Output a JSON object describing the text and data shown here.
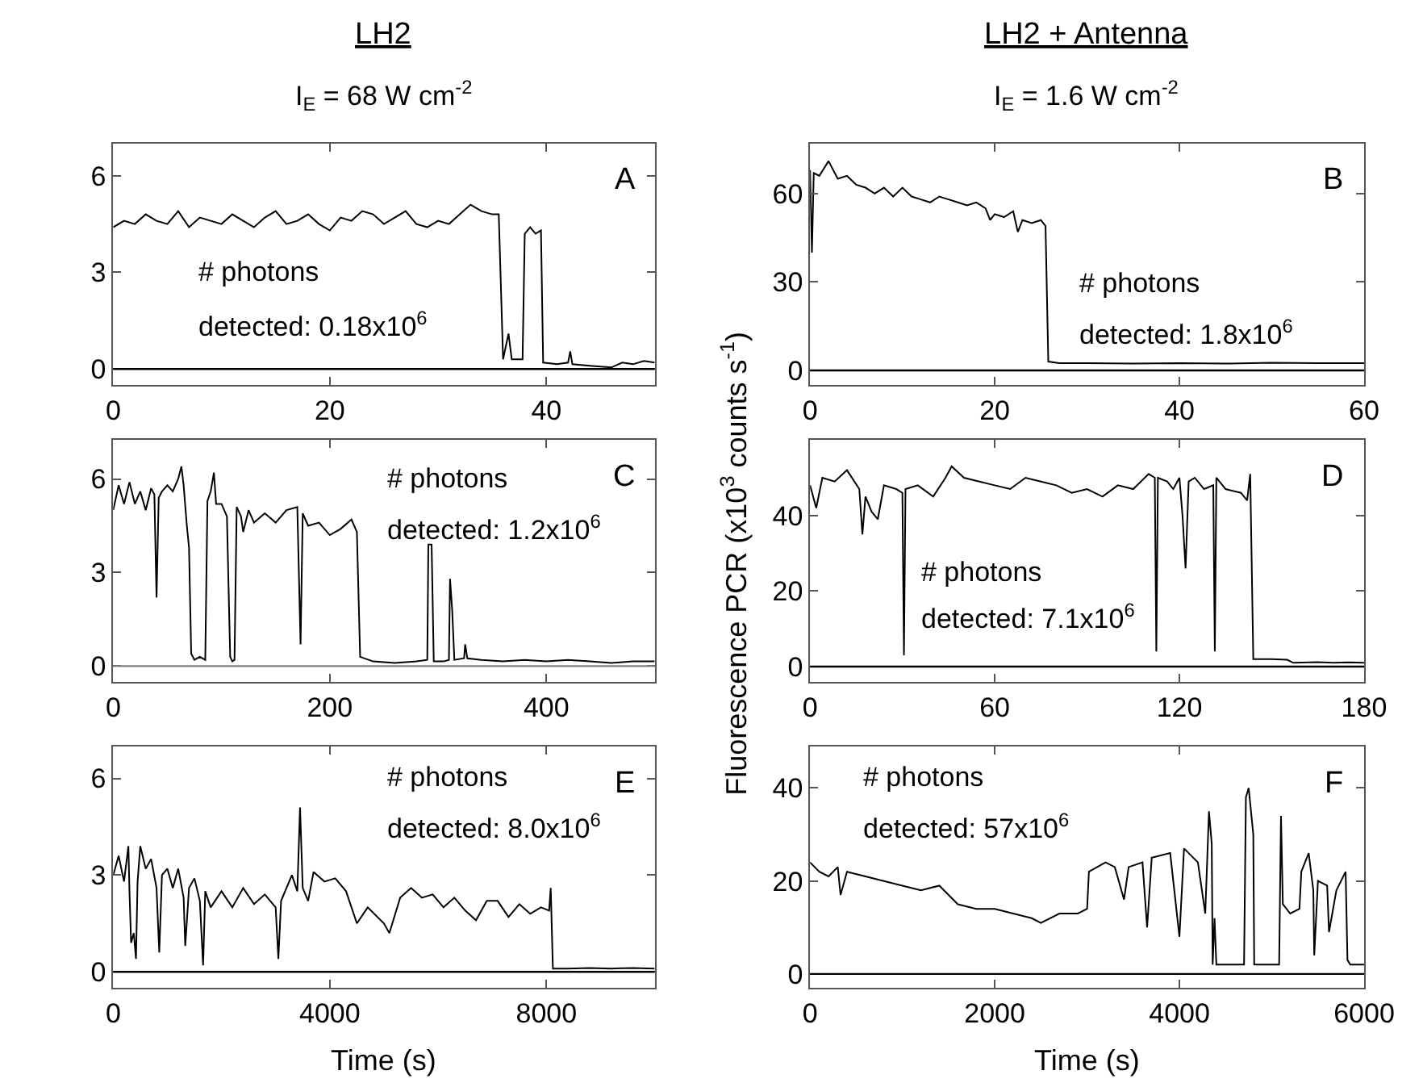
{
  "chart_data": [
    {
      "type": "line",
      "title": "LH2",
      "subtitle": "I$_{E}$ = 68 W cm$^{-2}$",
      "xlim": [
        0,
        50
      ],
      "xticks": [
        0,
        20,
        40
      ],
      "ylim": [
        -0.5,
        7
      ],
      "yticks": [
        0,
        3,
        6
      ],
      "marker": "none",
      "line_style": "solid",
      "ref_lines": [
        {
          "axis": "y",
          "value": 0,
          "color": "#000000"
        }
      ],
      "annotations": [
        "A",
        "# photons",
        "detected: 0.18x10$^{6}$"
      ],
      "series": [
        {
          "color": "#000000",
          "x": [
            0,
            1,
            2,
            3,
            4,
            5,
            6,
            7,
            8,
            9,
            10,
            11,
            12,
            13,
            14,
            15,
            16,
            17,
            18,
            19,
            20,
            21,
            22,
            23,
            24,
            25,
            26,
            27,
            28,
            29,
            30,
            31,
            32,
            33,
            34,
            35,
            35.6,
            36,
            36.5,
            36.8,
            37.8,
            38,
            38.5,
            39,
            39.5,
            39.7,
            41,
            42,
            42.2,
            42.4,
            44,
            46,
            47,
            48,
            49,
            50
          ],
          "values": [
            4.4,
            4.6,
            4.5,
            4.8,
            4.6,
            4.5,
            4.9,
            4.4,
            4.7,
            4.6,
            4.5,
            4.8,
            4.6,
            4.4,
            4.7,
            4.9,
            4.5,
            4.6,
            4.8,
            4.5,
            4.3,
            4.7,
            4.6,
            4.9,
            4.8,
            4.5,
            4.7,
            4.9,
            4.5,
            4.4,
            4.6,
            4.5,
            4.8,
            5.1,
            4.9,
            4.8,
            4.8,
            0.3,
            1.1,
            0.3,
            0.3,
            4.2,
            4.4,
            4.2,
            4.3,
            0.2,
            0.15,
            0.2,
            0.55,
            0.15,
            0.1,
            0.05,
            0.2,
            0.15,
            0.25,
            0.2
          ]
        }
      ]
    },
    {
      "type": "line",
      "title": "LH2 + Antenna",
      "subtitle": "I$_{E}$ = 1.6 W cm$^{-2}$",
      "xlim": [
        0,
        60
      ],
      "xticks": [
        0,
        20,
        40,
        60
      ],
      "ylim": [
        -5,
        77
      ],
      "yticks": [
        0,
        30,
        60
      ],
      "marker": "none",
      "line_style": "solid",
      "ref_lines": [
        {
          "axis": "y",
          "value": 0,
          "color": "#000000"
        }
      ],
      "annotations": [
        "B",
        "# photons",
        "detected: 1.8x10$^{6}$"
      ],
      "series": [
        {
          "color": "#000000",
          "x": [
            0,
            0.2,
            0.4,
            1,
            2,
            3,
            4,
            5,
            6,
            7,
            8,
            9,
            10,
            11,
            12,
            13,
            14,
            15,
            16,
            17,
            18,
            19,
            19.5,
            20,
            21,
            22,
            22.5,
            23,
            24,
            25,
            25.5,
            25.8,
            27,
            30,
            35,
            40,
            45,
            50,
            55,
            60
          ],
          "values": [
            68,
            40,
            67,
            66,
            71,
            65,
            66,
            63,
            62,
            60,
            62,
            59,
            62,
            59,
            58,
            57,
            59,
            58,
            57,
            56,
            57,
            55,
            51,
            53,
            52,
            54,
            47,
            51,
            50,
            51,
            49,
            3,
            2.5,
            2.5,
            2.3,
            2.5,
            2.3,
            2.6,
            2.5,
            2.5
          ]
        }
      ]
    },
    {
      "type": "line",
      "xlim": [
        0,
        500
      ],
      "xticks": [
        0,
        200,
        400
      ],
      "ylim": [
        -0.5,
        7.25
      ],
      "yticks": [
        0,
        3,
        6
      ],
      "marker": "none",
      "line_style": "solid",
      "ref_lines": [
        {
          "axis": "y",
          "value": 0,
          "color": "#808080"
        }
      ],
      "annotations": [
        "C",
        "# photons",
        "detected: 1.2x10$^{6}$"
      ],
      "series": [
        {
          "color": "#000000",
          "x": [
            0,
            5,
            10,
            15,
            20,
            25,
            30,
            35,
            38,
            40,
            42,
            45,
            50,
            55,
            60,
            63,
            65,
            68,
            70,
            72,
            75,
            80,
            85,
            87,
            90,
            93,
            95,
            100,
            105,
            108,
            110,
            112,
            114,
            118,
            120,
            125,
            130,
            140,
            150,
            160,
            170,
            173,
            175,
            180,
            190,
            200,
            210,
            220,
            225,
            228,
            240,
            260,
            280,
            290,
            291,
            294,
            296,
            305,
            310,
            311,
            313,
            315,
            324,
            325,
            327,
            340,
            360,
            380,
            400,
            420,
            440,
            460,
            480,
            500
          ],
          "values": [
            5.0,
            5.8,
            5.2,
            5.9,
            5.2,
            5.6,
            5.0,
            5.7,
            5.5,
            2.2,
            5.4,
            5.6,
            5.8,
            5.6,
            6.0,
            6.4,
            5.8,
            4.5,
            3.8,
            0.4,
            0.2,
            0.3,
            0.2,
            5.3,
            5.6,
            6.2,
            5.2,
            5.2,
            4.8,
            0.3,
            0.15,
            0.2,
            5.1,
            4.8,
            4.3,
            5.0,
            4.6,
            4.9,
            4.6,
            5.0,
            5.1,
            0.7,
            4.9,
            4.5,
            4.6,
            4.2,
            4.4,
            4.7,
            4.3,
            0.3,
            0.15,
            0.1,
            0.15,
            0.2,
            3.9,
            3.9,
            0.15,
            0.15,
            0.2,
            2.8,
            1.8,
            0.2,
            0.25,
            0.7,
            0.25,
            0.2,
            0.15,
            0.2,
            0.15,
            0.2,
            0.15,
            0.1,
            0.15,
            0.15
          ]
        }
      ]
    },
    {
      "type": "line",
      "ylabel": "Fluorescence PCR (x10$^{3}$ counts s$^{-1}$)",
      "xlim": [
        0,
        180
      ],
      "xticks": [
        0,
        60,
        120,
        180
      ],
      "ylim": [
        -4,
        60
      ],
      "yticks": [
        0,
        20,
        40
      ],
      "marker": "none",
      "line_style": "solid",
      "ref_lines": [
        {
          "axis": "y",
          "value": 0,
          "color": "#000000"
        }
      ],
      "annotations": [
        "D",
        "# photons",
        "detected: 7.1x10$^{6}$"
      ],
      "series": [
        {
          "color": "#000000",
          "x": [
            0,
            2,
            4,
            8,
            12,
            16,
            17,
            18,
            20,
            22,
            24,
            28,
            30,
            30.5,
            31,
            35,
            40,
            44,
            46,
            50,
            55,
            60,
            65,
            70,
            75,
            80,
            85,
            90,
            95,
            100,
            105,
            110,
            112,
            112.5,
            113,
            116,
            118,
            120,
            121,
            122,
            123,
            125,
            128,
            131,
            131.5,
            132,
            135,
            140,
            142,
            143,
            144,
            150,
            155,
            157,
            165,
            170,
            175,
            180
          ],
          "values": [
            48,
            42,
            50,
            49,
            52,
            47,
            35,
            45,
            41,
            39,
            48,
            47,
            46,
            3,
            47,
            48,
            45,
            50,
            53,
            50,
            49,
            48,
            47,
            50,
            49,
            48,
            46,
            47,
            45,
            48,
            47,
            51,
            50,
            4,
            50,
            49,
            47,
            50,
            40,
            26,
            49,
            50,
            47,
            48,
            4,
            50,
            47,
            46,
            44,
            51,
            2,
            2,
            1.8,
            1,
            1.2,
            1,
            1.1,
            1
          ]
        }
      ]
    },
    {
      "type": "line",
      "xlabel": "Time (s)",
      "xlim": [
        0,
        10000
      ],
      "xticks": [
        0,
        4000,
        8000
      ],
      "ylim": [
        -0.5,
        7
      ],
      "yticks": [
        0,
        3,
        6
      ],
      "marker": "none",
      "line_style": "solid",
      "ref_lines": [
        {
          "axis": "y",
          "value": 0,
          "color": "#000000"
        }
      ],
      "annotations": [
        "E",
        "# photons",
        "detected: 8.0x10$^{6}$"
      ],
      "series": [
        {
          "color": "#000000",
          "x": [
            0,
            100,
            200,
            280,
            300,
            330,
            380,
            420,
            450,
            500,
            600,
            700,
            800,
            850,
            900,
            1000,
            1100,
            1200,
            1300,
            1330,
            1400,
            1500,
            1600,
            1660,
            1700,
            1800,
            2000,
            2200,
            2400,
            2600,
            2800,
            3000,
            3050,
            3100,
            3300,
            3400,
            3450,
            3500,
            3600,
            3700,
            3900,
            4100,
            4300,
            4500,
            4700,
            5000,
            5100,
            5300,
            5500,
            5700,
            5900,
            6100,
            6300,
            6500,
            6700,
            6900,
            7100,
            7300,
            7500,
            7700,
            7900,
            8050,
            8080,
            8120,
            8400,
            8800,
            9200,
            9600,
            10000
          ],
          "values": [
            3.0,
            3.6,
            2.8,
            3.9,
            2.5,
            0.9,
            1.2,
            0.4,
            2.8,
            3.9,
            3.2,
            3.5,
            2.6,
            0.6,
            3.0,
            3.2,
            2.6,
            3.2,
            2.3,
            0.8,
            2.6,
            2.9,
            2.2,
            0.2,
            2.5,
            2.0,
            2.5,
            2.0,
            2.6,
            2.1,
            2.4,
            2.0,
            0.4,
            2.2,
            3.0,
            2.5,
            5.1,
            2.6,
            2.2,
            3.1,
            2.8,
            2.9,
            2.5,
            1.5,
            2.0,
            1.5,
            1.2,
            2.3,
            2.6,
            2.3,
            2.4,
            2.0,
            2.3,
            1.9,
            1.6,
            2.2,
            2.2,
            1.7,
            2.1,
            1.8,
            2.0,
            1.9,
            2.6,
            0.1,
            0.1,
            0.12,
            0.1,
            0.12,
            0.1
          ]
        }
      ]
    },
    {
      "type": "line",
      "xlabel": "Time (s)",
      "xlim": [
        0,
        6000
      ],
      "xticks": [
        0,
        2000,
        4000,
        6000
      ],
      "ylim": [
        -3,
        49
      ],
      "yticks": [
        0,
        20,
        40
      ],
      "marker": "none",
      "line_style": "solid",
      "ref_lines": [
        {
          "axis": "y",
          "value": 0,
          "color": "#000000"
        }
      ],
      "annotations": [
        "F",
        "# photons",
        "detected: 57x10$^{6}$"
      ],
      "series": [
        {
          "color": "#000000",
          "x": [
            0,
            100,
            200,
            300,
            330,
            400,
            600,
            800,
            1000,
            1200,
            1400,
            1600,
            1800,
            2000,
            2200,
            2400,
            2500,
            2700,
            2900,
            3000,
            3020,
            3200,
            3300,
            3400,
            3450,
            3600,
            3650,
            3700,
            3900,
            4000,
            4050,
            4200,
            4280,
            4300,
            4320,
            4350,
            4360,
            4380,
            4400,
            4600,
            4700,
            4720,
            4750,
            4800,
            4810,
            5000,
            5080,
            5100,
            5120,
            5200,
            5300,
            5320,
            5400,
            5450,
            5460,
            5500,
            5600,
            5620,
            5700,
            5800,
            5820,
            5850,
            5900,
            6000
          ],
          "values": [
            24,
            22,
            21,
            23,
            17,
            22,
            21,
            20,
            19,
            18,
            19,
            15,
            14,
            14,
            13,
            12,
            11,
            13,
            13,
            14,
            22,
            24,
            23,
            16,
            23,
            24,
            10,
            25,
            26,
            8,
            27,
            24,
            13,
            24,
            35,
            28,
            2,
            12,
            2,
            2,
            2,
            38,
            40,
            30,
            2,
            2,
            2,
            34,
            15,
            13,
            14,
            22,
            26,
            18,
            4,
            20,
            19,
            9,
            18,
            22,
            3,
            2,
            2,
            2
          ]
        }
      ]
    }
  ]
}
